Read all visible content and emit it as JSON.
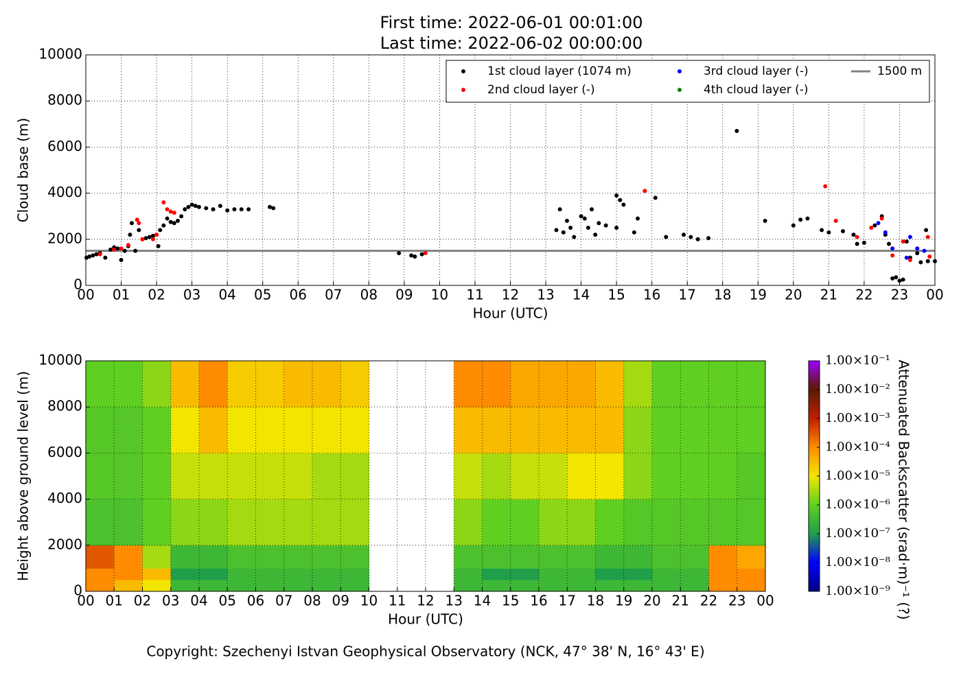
{
  "chart_data": [
    {
      "type": "scatter",
      "title": "First time: 2022-06-01 00:01:00",
      "subtitle": "Last time: 2022-06-02 00:00:00",
      "xlabel": "Hour (UTC)",
      "ylabel": "Cloud base (m)",
      "xlim": [
        0,
        24
      ],
      "ylim": [
        0,
        10000
      ],
      "xticks": [
        {
          "value": 0,
          "label": "00"
        },
        {
          "value": 1,
          "label": "01"
        },
        {
          "value": 2,
          "label": "02"
        },
        {
          "value": 3,
          "label": "03"
        },
        {
          "value": 4,
          "label": "04"
        },
        {
          "value": 5,
          "label": "05"
        },
        {
          "value": 6,
          "label": "06"
        },
        {
          "value": 7,
          "label": "07"
        },
        {
          "value": 8,
          "label": "08"
        },
        {
          "value": 9,
          "label": "09"
        },
        10,
        11,
        12,
        13,
        14,
        15,
        16,
        17,
        18,
        19,
        20,
        21,
        22,
        23,
        {
          "value": 24,
          "label": "00"
        }
      ],
      "yticks": [
        0,
        2000,
        4000,
        6000,
        8000,
        10000
      ],
      "grid": true,
      "legend": "upper right",
      "series": [
        {
          "name": "1st cloud layer (1074 m)",
          "color": "#000000",
          "x": [
            0.02,
            0.1,
            0.2,
            0.3,
            0.4,
            0.55,
            0.7,
            0.8,
            0.9,
            1.0,
            1.1,
            1.2,
            1.25,
            1.3,
            1.4,
            1.5,
            1.6,
            1.7,
            1.8,
            1.9,
            2.0,
            2.05,
            2.1,
            2.2,
            2.3,
            2.4,
            2.5,
            2.6,
            2.7,
            2.8,
            2.9,
            3.0,
            3.1,
            3.2,
            3.4,
            3.6,
            3.8,
            4.0,
            4.2,
            4.4,
            4.6,
            5.2,
            5.3,
            8.85,
            9.2,
            9.3,
            9.5,
            13.3,
            13.4,
            13.5,
            13.6,
            13.7,
            13.8,
            14.0,
            14.1,
            14.2,
            14.3,
            14.4,
            14.5,
            14.7,
            15.0,
            15.1,
            15.2,
            15.0,
            15.5,
            15.6,
            16.1,
            16.4,
            16.9,
            17.1,
            17.3,
            17.6,
            18.4,
            19.2,
            20.0,
            20.2,
            20.4,
            20.8,
            21.0,
            21.4,
            21.7,
            21.8,
            22.0,
            22.3,
            22.5,
            22.6,
            22.7,
            22.8,
            22.9,
            23.0,
            23.1,
            23.2,
            23.3,
            23.5,
            23.6,
            23.75,
            23.8,
            24.0
          ],
          "y": [
            1200,
            1250,
            1300,
            1350,
            1400,
            1200,
            1550,
            1650,
            1600,
            1100,
            1500,
            1700,
            2200,
            2700,
            1500,
            2400,
            2000,
            2050,
            2100,
            2150,
            2200,
            1700,
            2400,
            2600,
            2900,
            2750,
            2700,
            2800,
            3000,
            3300,
            3400,
            3500,
            3450,
            3400,
            3350,
            3300,
            3450,
            3250,
            3300,
            3300,
            3300,
            3400,
            3350,
            1400,
            1300,
            1250,
            1350,
            2400,
            3300,
            2300,
            2800,
            2500,
            2100,
            3000,
            2900,
            2500,
            3300,
            2200,
            2700,
            2600,
            3900,
            3700,
            3500,
            2500,
            2300,
            2900,
            3800,
            2100,
            2200,
            2100,
            2000,
            2050,
            6700,
            2800,
            2600,
            2850,
            2900,
            2400,
            2300,
            2350,
            2200,
            1800,
            1850,
            2600,
            3000,
            2200,
            1800,
            300,
            350,
            200,
            250,
            1900,
            1200,
            1400,
            1000,
            2400,
            1050,
            1050
          ]
        },
        {
          "name": "2nd cloud layer (-)",
          "color": "#ff0000",
          "x": [
            0.4,
            0.8,
            1.0,
            1.2,
            1.45,
            1.5,
            1.6,
            1.9,
            2.0,
            2.2,
            2.3,
            2.4,
            2.5,
            9.6,
            15.8,
            20.9,
            21.2,
            21.8,
            22.2,
            22.5,
            22.8,
            23.1,
            23.3,
            23.8,
            23.85
          ],
          "y": [
            1350,
            1550,
            1600,
            1750,
            2850,
            2700,
            2000,
            2000,
            2200,
            3600,
            3300,
            3200,
            3150,
            1400,
            4100,
            4300,
            2800,
            2100,
            2500,
            2900,
            1300,
            1900,
            1100,
            2100,
            1250
          ]
        },
        {
          "name": "3rd cloud layer (-)",
          "color": "#0000ff",
          "x": [
            22.4,
            22.6,
            22.8,
            23.2,
            23.3,
            23.5,
            23.7
          ],
          "y": [
            2700,
            2300,
            1600,
            1200,
            2100,
            1600,
            1500
          ]
        },
        {
          "name": "4th cloud layer (-)",
          "color": "#008000",
          "x": [],
          "y": []
        }
      ],
      "hlines": [
        {
          "name": "1500 m",
          "value": 1500,
          "color": "#808080"
        }
      ]
    },
    {
      "type": "heatmap",
      "xlabel": "Hour (UTC)",
      "ylabel": "Height above ground level (m)",
      "xlim": [
        0,
        24
      ],
      "ylim": [
        0,
        10000
      ],
      "xticks": [
        {
          "value": 0,
          "label": "00"
        },
        {
          "value": 1,
          "label": "01"
        },
        {
          "value": 2,
          "label": "02"
        },
        {
          "value": 3,
          "label": "03"
        },
        {
          "value": 4,
          "label": "04"
        },
        {
          "value": 5,
          "label": "05"
        },
        {
          "value": 6,
          "label": "06"
        },
        {
          "value": 7,
          "label": "07"
        },
        {
          "value": 8,
          "label": "08"
        },
        {
          "value": 9,
          "label": "09"
        },
        10,
        11,
        12,
        13,
        14,
        15,
        16,
        17,
        18,
        19,
        20,
        21,
        22,
        23,
        {
          "value": 24,
          "label": "00"
        }
      ],
      "yticks": [
        0,
        2000,
        4000,
        6000,
        8000,
        10000
      ],
      "grid": true,
      "xbins": [
        0,
        1,
        2,
        3,
        4,
        5,
        6,
        7,
        8,
        9,
        10,
        11,
        12,
        13,
        14,
        15,
        16,
        17,
        18,
        19,
        20,
        21,
        22,
        23,
        24
      ],
      "ybins": [
        0,
        500,
        1000,
        2000,
        4000,
        6000,
        8000,
        10000
      ],
      "values": [
        [
          0.0001,
          3e-05,
          1e-05,
          3e-07,
          3e-07,
          3e-07,
          3e-07,
          3e-07,
          3e-07,
          3e-07,
          null,
          null,
          null,
          3e-07,
          3e-07,
          3e-07,
          3e-07,
          3e-07,
          3e-07,
          3e-07,
          3e-07,
          3e-07,
          0.0001,
          0.0001
        ],
        [
          0.0001,
          0.0001,
          3e-05,
          1e-07,
          1e-07,
          3e-07,
          3e-07,
          3e-07,
          3e-07,
          3e-07,
          null,
          null,
          null,
          3e-07,
          1e-07,
          1e-07,
          3e-07,
          3e-07,
          1e-07,
          1e-07,
          3e-07,
          3e-07,
          0.0001,
          0.0001
        ],
        [
          0.0003,
          0.0001,
          3e-06,
          3e-07,
          3e-07,
          5e-07,
          5e-07,
          5e-07,
          5e-07,
          5e-07,
          null,
          null,
          null,
          5e-07,
          5e-07,
          5e-07,
          5e-07,
          5e-07,
          3e-07,
          3e-07,
          5e-07,
          5e-07,
          0.0001,
          5e-05
        ],
        [
          5e-07,
          5e-07,
          1e-06,
          2e-06,
          2e-06,
          3e-06,
          3e-06,
          3e-06,
          3e-06,
          3e-06,
          null,
          null,
          null,
          2e-06,
          1e-06,
          1e-06,
          2e-06,
          2e-06,
          1e-06,
          7e-07,
          7e-07,
          7e-07,
          7e-07,
          7e-07
        ],
        [
          7e-07,
          7e-07,
          1e-06,
          5e-06,
          5e-06,
          5e-06,
          5e-06,
          5e-06,
          3e-06,
          3e-06,
          null,
          null,
          null,
          5e-06,
          3e-06,
          5e-06,
          5e-06,
          1e-05,
          1e-05,
          2e-06,
          1e-06,
          1e-06,
          1e-06,
          7e-07
        ],
        [
          7e-07,
          7e-07,
          1e-06,
          1e-05,
          3e-05,
          1e-05,
          1e-05,
          1e-05,
          1e-05,
          1e-05,
          null,
          null,
          null,
          3e-05,
          3e-05,
          3e-05,
          3e-05,
          3e-05,
          3e-05,
          2e-06,
          1e-06,
          1e-06,
          1e-06,
          1e-06
        ],
        [
          1e-06,
          1e-06,
          2e-06,
          3e-05,
          0.0001,
          2e-05,
          2e-05,
          3e-05,
          3e-05,
          2e-05,
          null,
          null,
          null,
          0.0001,
          0.0001,
          5e-05,
          5e-05,
          5e-05,
          3e-05,
          3e-06,
          1e-06,
          1e-06,
          1e-06,
          1e-06
        ]
      ],
      "colorbar": {
        "label": "Attenuated Backscatter (srad·m)⁻¹ (?)",
        "log": true,
        "lim": [
          1e-09,
          0.1
        ],
        "ticks": [
          {
            "value": 1e-09,
            "label": "1.00×10⁻⁹"
          },
          {
            "value": 1e-08,
            "label": "1.00×10⁻⁸"
          },
          {
            "value": 1e-07,
            "label": "1.00×10⁻⁷"
          },
          {
            "value": 1e-06,
            "label": "1.00×10⁻⁶"
          },
          {
            "value": 1e-05,
            "label": "1.00×10⁻⁵"
          },
          {
            "value": 0.0001,
            "label": "1.00×10⁻⁴"
          },
          {
            "value": 0.001,
            "label": "1.00×10⁻³"
          },
          {
            "value": 0.01,
            "label": "1.00×10⁻²"
          },
          {
            "value": 0.1,
            "label": "1.00×10⁻¹"
          }
        ],
        "colors": [
          "#00007f",
          "#0000ff",
          "#1f9f4a",
          "#5fd021",
          "#f2e600",
          "#ff8c00",
          "#c02000",
          "#5a1a00",
          "#a000ff"
        ]
      }
    }
  ],
  "footer": "Copyright: Szechenyi Istvan Geophysical Observatory (NCK, 47° 38' N, 16° 43' E)"
}
